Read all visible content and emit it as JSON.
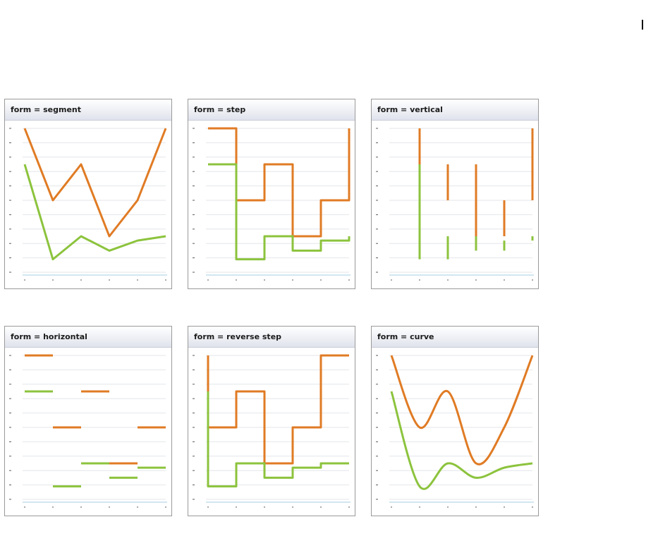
{
  "colors": {
    "orange": "#e07b24",
    "green": "#8cc33d",
    "grid": "#e4e6ea",
    "axis": "#b6d6e6",
    "tick": "#5a5a5a"
  },
  "chart_data": [
    {
      "type": "line",
      "title": "form = segment",
      "form": "segment",
      "x": [
        0,
        1,
        2,
        3,
        4,
        5
      ],
      "ylim": [
        0,
        10
      ],
      "grid": true,
      "legend": "none",
      "series": [
        {
          "color": "orange",
          "values": [
            10,
            5,
            7.5,
            2.5,
            5,
            10
          ]
        },
        {
          "color": "green",
          "values": [
            7.5,
            0.9,
            2.5,
            1.5,
            2.2,
            2.5
          ]
        }
      ]
    },
    {
      "type": "line",
      "title": "form = step",
      "form": "step",
      "x": [
        0,
        1,
        2,
        3,
        4,
        5
      ],
      "ylim": [
        0,
        10
      ],
      "grid": true,
      "legend": "none",
      "series": [
        {
          "color": "orange",
          "values": [
            10,
            5,
            7.5,
            2.5,
            5,
            10
          ]
        },
        {
          "color": "green",
          "values": [
            7.5,
            0.9,
            2.5,
            1.5,
            2.2,
            2.5
          ]
        }
      ]
    },
    {
      "type": "line",
      "title": "form = vertical",
      "form": "vertical",
      "x": [
        0,
        1,
        2,
        3,
        4,
        5
      ],
      "ylim": [
        0,
        10
      ],
      "grid": true,
      "legend": "none",
      "series": [
        {
          "color": "orange",
          "values": [
            10,
            5,
            7.5,
            2.5,
            5,
            10
          ]
        },
        {
          "color": "green",
          "values": [
            7.5,
            0.9,
            2.5,
            1.5,
            2.2,
            2.5
          ]
        }
      ]
    },
    {
      "type": "line",
      "title": "form = horizontal",
      "form": "horizontal",
      "x": [
        0,
        1,
        2,
        3,
        4,
        5
      ],
      "ylim": [
        0,
        10
      ],
      "grid": true,
      "legend": "none",
      "series": [
        {
          "color": "orange",
          "values": [
            10,
            5,
            7.5,
            2.5,
            5,
            10
          ]
        },
        {
          "color": "green",
          "values": [
            7.5,
            0.9,
            2.5,
            1.5,
            2.2,
            2.5
          ]
        }
      ]
    },
    {
      "type": "line",
      "title": "form = reverse step",
      "form": "reverse step",
      "x": [
        0,
        1,
        2,
        3,
        4,
        5
      ],
      "ylim": [
        0,
        10
      ],
      "grid": true,
      "legend": "none",
      "series": [
        {
          "color": "orange",
          "values": [
            10,
            5,
            7.5,
            2.5,
            5,
            10
          ]
        },
        {
          "color": "green",
          "values": [
            7.5,
            0.9,
            2.5,
            1.5,
            2.2,
            2.5
          ]
        }
      ]
    },
    {
      "type": "line",
      "title": "form = curve",
      "form": "curve",
      "x": [
        0,
        1,
        2,
        3,
        4,
        5
      ],
      "ylim": [
        0,
        10
      ],
      "grid": true,
      "legend": "none",
      "series": [
        {
          "color": "orange",
          "values": [
            10,
            5,
            7.5,
            2.5,
            5,
            10
          ]
        },
        {
          "color": "green",
          "values": [
            7.5,
            0.9,
            2.5,
            1.5,
            2.2,
            2.5
          ]
        }
      ]
    }
  ]
}
